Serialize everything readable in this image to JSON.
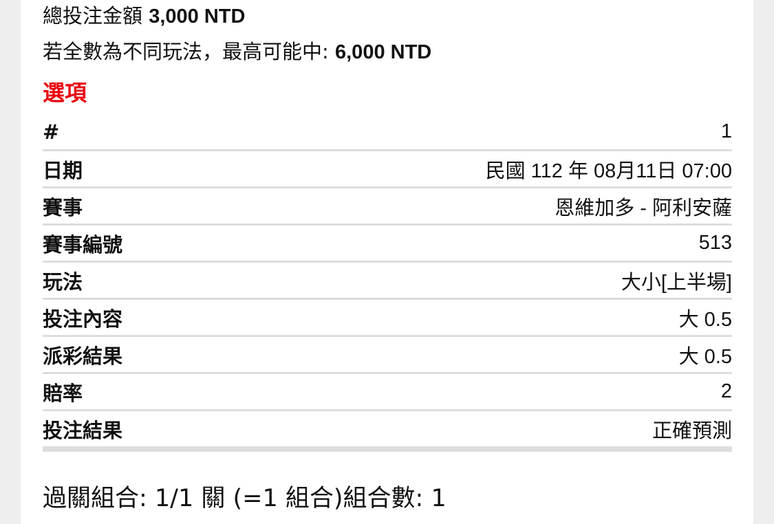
{
  "summary": {
    "total_label": "總投注金額",
    "total_value": "3,000 NTD",
    "max_label": "若全數為不同玩法，最高可能中: ",
    "max_value": "6,000 NTD"
  },
  "options_title": "選項",
  "rows": [
    {
      "label": "#",
      "value": "1"
    },
    {
      "label": "日期",
      "value": "民國 112 年 08月11日 07:00"
    },
    {
      "label": "賽事",
      "value": "恩維加多 - 阿利安薩"
    },
    {
      "label": "賽事編號",
      "value": "513"
    },
    {
      "label": "玩法",
      "value": "大小[上半場]"
    },
    {
      "label": "投注內容",
      "value": "大 0.5"
    },
    {
      "label": "派彩結果",
      "value": "大 0.5"
    },
    {
      "label": "賠率",
      "value": "2"
    },
    {
      "label": "投注結果",
      "value": "正確預測"
    }
  ],
  "combo_text": "過關組合: 1/1 關 (=1 組合)組合數: 1",
  "colors": {
    "accent": "#e8000b",
    "divider": "#dddddd",
    "background": "#eeeeee"
  }
}
